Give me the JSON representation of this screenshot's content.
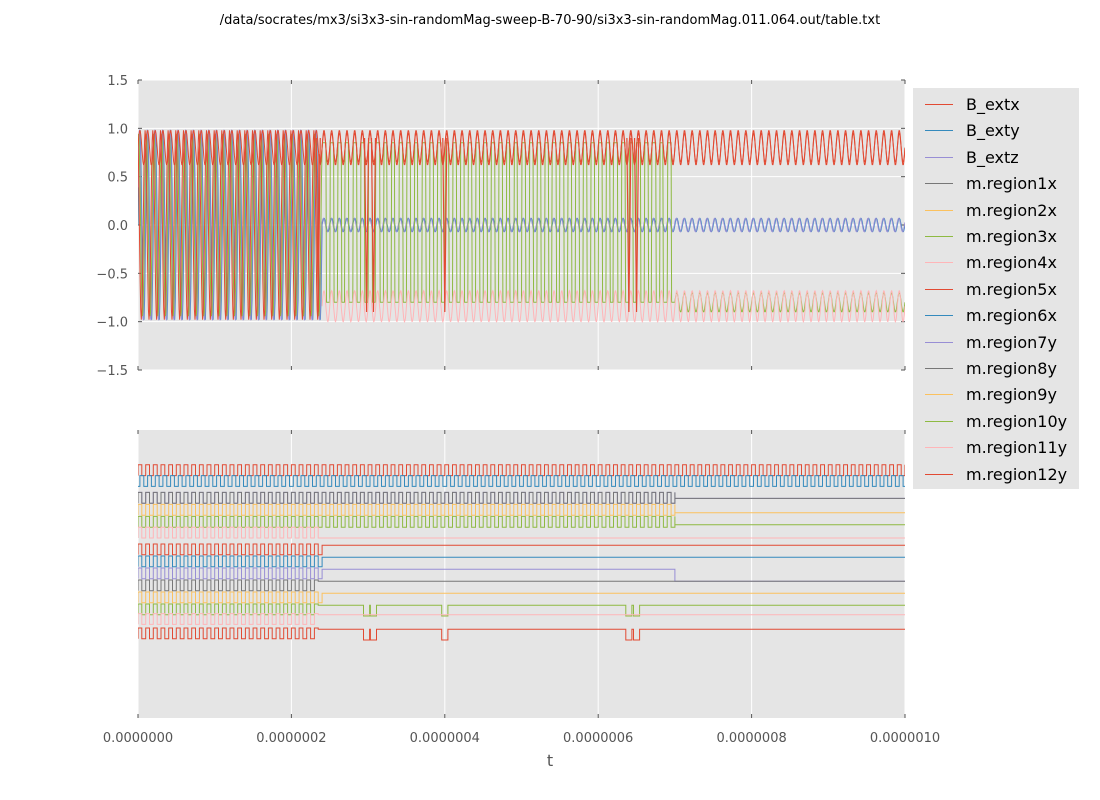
{
  "title": "/data/socrates/mx3/si3x3-sin-randomMag-sweep-B-70-90/si3x3-sin-randomMag.011.064.out/table.txt",
  "colors": {
    "B_extx": "#e24a33",
    "B_exty": "#348abd",
    "B_extz": "#988ed5",
    "m.region1x": "#777777",
    "m.region2x": "#fbc15e",
    "m.region3x": "#8eba42",
    "m.region4x": "#ffb5b8",
    "m.region5x": "#e24a33",
    "m.region6x": "#348abd",
    "m.region7y": "#988ed5",
    "m.region8y": "#777777",
    "m.region9y": "#fbc15e",
    "m.region10y": "#8eba42",
    "m.region11y": "#ffb5b8",
    "m.region12y": "#e24a33",
    "axes_bg": "#e5e5e5",
    "grid": "#ffffff"
  },
  "legend": {
    "placement": "right-outside",
    "entries": [
      "B_extx",
      "B_exty",
      "B_extz",
      "m.region1x",
      "m.region2x",
      "m.region3x",
      "m.region4x",
      "m.region5x",
      "m.region6x",
      "m.region7y",
      "m.region8y",
      "m.region9y",
      "m.region10y",
      "m.region11y",
      "m.region12y"
    ]
  },
  "chart_data": [
    {
      "type": "line",
      "panel": "top",
      "title": "/data/socrates/mx3/si3x3-sin-randomMag-sweep-B-70-90/si3x3-sin-randomMag.011.064.out/table.txt",
      "xlabel": "",
      "ylabel": "",
      "xlim": [
        0,
        1e-06
      ],
      "ylim": [
        -1.5,
        1.5
      ],
      "yticks": [
        "1.5",
        "1.0",
        "0.5",
        "0.0",
        "−0.5",
        "−1.0",
        "−1.5"
      ],
      "ytick_values": [
        1.5,
        1.0,
        0.5,
        0.0,
        -0.5,
        -1.0,
        -1.5
      ],
      "grid": true,
      "drive_period": 1e-08,
      "series": [
        {
          "name": "B_exty",
          "kind": "sin",
          "amplitude_before": 1.0,
          "amplitude_after": 0.07,
          "switch_t": 2.4e-07,
          "offset": 0
        },
        {
          "name": "B_extz",
          "kind": "sin",
          "amplitude_before": 1.0,
          "amplitude_after": 0.07,
          "switch_t": 2.4e-07,
          "offset": 0
        },
        {
          "name": "m.region3x",
          "kind": "switching",
          "high": 0.85,
          "low": -0.8,
          "active_until": 7e-07
        },
        {
          "name": "m.region4x",
          "kind": "band",
          "from": 2.4e-07,
          "to": 1e-06,
          "low": -1.0,
          "high": -0.68
        },
        {
          "name": "B_extx",
          "kind": "band",
          "from": 0,
          "to": 1e-06,
          "low": 0.62,
          "high": 0.98
        },
        {
          "name": "m.region5x",
          "kind": "spikes",
          "times": [
            2.35e-07,
            2.98e-07,
            3.07e-07,
            4e-07,
            6.4e-07,
            6.5e-07
          ],
          "high": 0.9,
          "low": -0.9
        }
      ]
    },
    {
      "type": "line",
      "panel": "bottom",
      "xlabel": "t",
      "xlim": [
        0,
        1e-06
      ],
      "xticks": [
        "0.0000000",
        "0.0000002",
        "0.0000004",
        "0.0000006",
        "0.0000008",
        "0.0000010"
      ],
      "xtick_values": [
        0,
        2e-07,
        4e-07,
        6e-07,
        8e-07,
        1e-06
      ],
      "yticks": [],
      "grid": true,
      "series": [
        {
          "name": "B_extx",
          "kind": "square",
          "level": 12.2,
          "amp": 0.9,
          "period": 1e-08,
          "from": 0,
          "to": 1e-06
        },
        {
          "name": "B_exty",
          "kind": "square",
          "level": 11.3,
          "amp": 0.9,
          "period": 1e-08,
          "phase": 0.5,
          "from": 0,
          "to": 1e-06
        },
        {
          "name": "B_extz",
          "kind": "square_then_flat",
          "level": 9.9,
          "amp": 0.9,
          "period": 1e-08,
          "to": 7e-07,
          "flat": 10.3
        },
        {
          "name": "m.region1x",
          "kind": "square_then_flat",
          "level": 9.9,
          "amp": 0.9,
          "period": 1e-08,
          "to": 7e-07,
          "flat": 10.3
        },
        {
          "name": "m.region2x",
          "kind": "square_then_flat",
          "level": 8.9,
          "amp": 0.9,
          "period": 1e-08,
          "to": 7e-07,
          "flat": 9.1
        },
        {
          "name": "m.region3x",
          "kind": "square_then_flat",
          "level": 7.9,
          "amp": 0.9,
          "period": 1e-08,
          "to": 7e-07,
          "flat": 8.1
        },
        {
          "name": "m.region4x",
          "kind": "square_then_flat",
          "level": 7.0,
          "amp": 0.9,
          "period": 1e-08,
          "to": 2.4e-07,
          "flat": 7.0
        },
        {
          "name": "m.region5x",
          "kind": "square_then_flat",
          "level": 5.6,
          "amp": 0.9,
          "period": 1e-08,
          "to": 2.4e-07,
          "flat": 6.4
        },
        {
          "name": "m.region6x",
          "kind": "square_then_flat",
          "level": 4.6,
          "amp": 0.9,
          "period": 1e-08,
          "to": 2.4e-07,
          "flat": 5.4
        },
        {
          "name": "m.region7y",
          "kind": "square_then_flat",
          "level": 3.6,
          "amp": 0.9,
          "period": 1e-08,
          "to": 2.4e-07,
          "flat": 4.4,
          "drop_at": 7e-07,
          "after_drop": 3.4
        },
        {
          "name": "m.region8y",
          "kind": "square_then_flat",
          "level": 2.6,
          "amp": 0.9,
          "period": 1e-08,
          "to": 2.35e-07,
          "flat": 3.4
        },
        {
          "name": "m.region9y",
          "kind": "square_then_flat",
          "level": 1.6,
          "amp": 0.9,
          "period": 1e-08,
          "to": 2.4e-07,
          "flat": 2.4
        },
        {
          "name": "m.region10y",
          "kind": "square_then_spikes",
          "level": 0.6,
          "amp": 0.9,
          "period": 1e-08,
          "to": 2.35e-07,
          "flat": 1.4,
          "spikes": [
            2.98e-07,
            3.07e-07,
            4e-07,
            6.4e-07,
            6.5e-07
          ]
        },
        {
          "name": "m.region11y",
          "kind": "square_then_flat",
          "level": -0.2,
          "amp": 0.9,
          "period": 1e-08,
          "to": 2.35e-07,
          "flat": 0.6
        },
        {
          "name": "m.region12y",
          "kind": "square_then_spikes",
          "level": -1.4,
          "amp": 0.9,
          "period": 1e-08,
          "to": 2.35e-07,
          "flat": -0.6,
          "spikes": [
            2.98e-07,
            3.07e-07,
            4e-07,
            6.4e-07,
            6.5e-07
          ]
        }
      ]
    }
  ]
}
